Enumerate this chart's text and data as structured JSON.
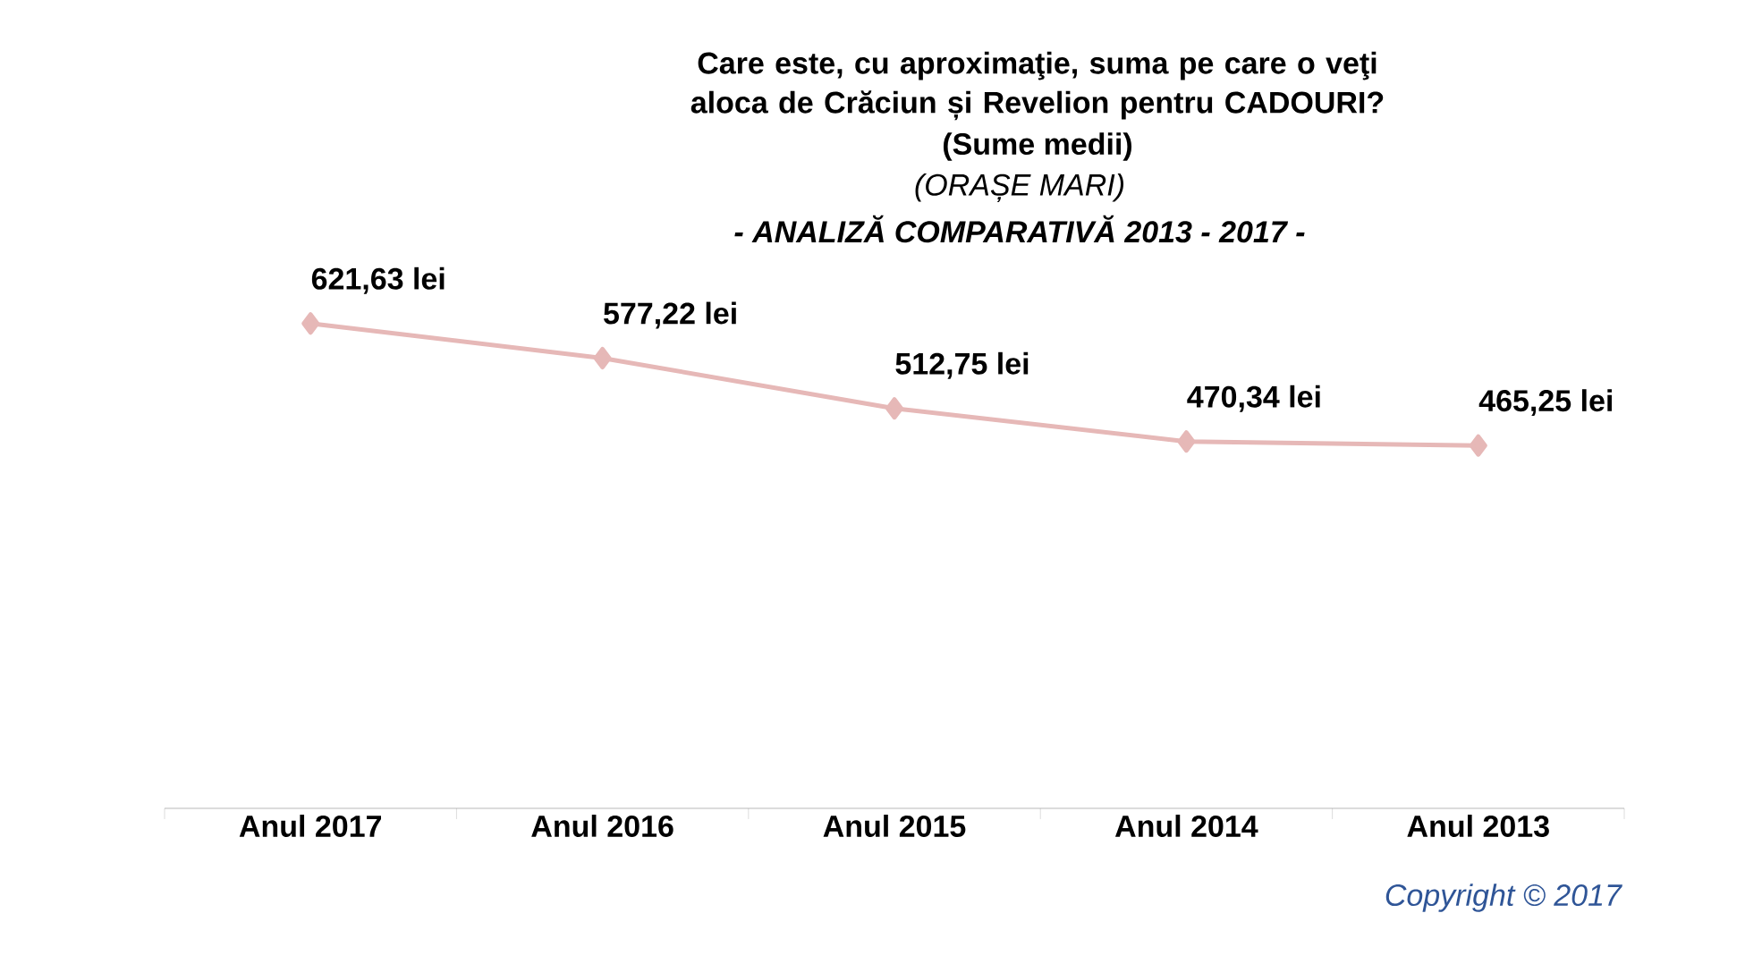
{
  "chart_data": {
    "type": "line",
    "title": "Care este, cu aproximaţie, suma pe care o veţi aloca de Crăciun și  Revelion pentru CADOURI?",
    "subtitle": "(Sume medii)",
    "annotations": [
      "(ORAȘE MARI)",
      "- ANALIZĂ COMPARATIVĂ 2013 - 2017 -",
      "Copyright ©  2017"
    ],
    "categories": [
      "Anul 2017",
      "Anul 2016",
      "Anul 2015",
      "Anul 2014",
      "Anul 2013"
    ],
    "values": [
      621.63,
      577.22,
      512.75,
      470.34,
      465.25
    ],
    "value_labels": [
      "621,63 lei",
      "577,22 lei",
      "512,75 lei",
      "470,34 lei",
      "465,25 lei"
    ],
    "color": "#e6b8b7",
    "marker": "diamond",
    "tick_labels": "x"
  }
}
